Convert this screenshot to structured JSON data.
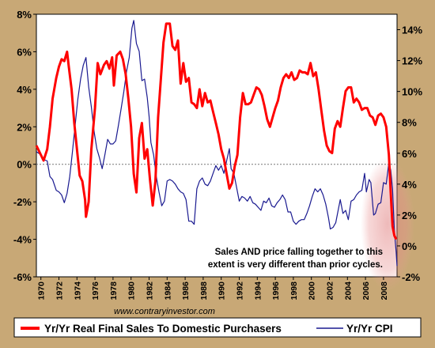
{
  "chart_data": {
    "type": "line",
    "title": "",
    "annotation": {
      "line1": "Sales AND price falling together to this",
      "line2": "extent is very different than prior cycles."
    },
    "source": "www.contraryinvestor.com",
    "x_ticks": [
      "1970",
      "1972",
      "1974",
      "1976",
      "1978",
      "1980",
      "1982",
      "1984",
      "1986",
      "1988",
      "1990",
      "1992",
      "1994",
      "1996",
      "1998",
      "2000",
      "2002",
      "2004",
      "2006",
      "2008"
    ],
    "xlim": [
      1969.5,
      2009.5
    ],
    "left_axis": {
      "ylim": [
        -6,
        8
      ],
      "ticks": [
        "-6%",
        "-4%",
        "-2%",
        "0%",
        "2%",
        "4%",
        "6%",
        "8%"
      ],
      "tick_values": [
        -6,
        -4,
        -2,
        0,
        2,
        4,
        6,
        8
      ]
    },
    "right_axis": {
      "ylim": [
        -2,
        15
      ],
      "ticks": [
        "-2%",
        "0%",
        "2%",
        "4%",
        "6%",
        "8%",
        "10%",
        "12%",
        "14%"
      ],
      "tick_values": [
        -2,
        0,
        2,
        4,
        6,
        8,
        10,
        12,
        14
      ]
    },
    "series": [
      {
        "name": "Yr/Yr Real Final Sales To Domestic Purchasers",
        "axis": "left",
        "color": "#ff0000",
        "points": [
          [
            1969.5,
            1.0
          ],
          [
            1970.0,
            0.5
          ],
          [
            1970.3,
            0.2
          ],
          [
            1970.7,
            0.8
          ],
          [
            1971.0,
            2.0
          ],
          [
            1971.3,
            3.5
          ],
          [
            1971.7,
            4.6
          ],
          [
            1972.0,
            5.2
          ],
          [
            1972.3,
            5.6
          ],
          [
            1972.6,
            5.5
          ],
          [
            1972.9,
            6.0
          ],
          [
            1973.1,
            5.2
          ],
          [
            1973.4,
            4.0
          ],
          [
            1973.7,
            2.2
          ],
          [
            1974.0,
            0.8
          ],
          [
            1974.3,
            -0.6
          ],
          [
            1974.6,
            -0.9
          ],
          [
            1974.9,
            -1.9
          ],
          [
            1975.0,
            -2.8
          ],
          [
            1975.3,
            -2.0
          ],
          [
            1975.6,
            0.8
          ],
          [
            1976.0,
            3.0
          ],
          [
            1976.3,
            5.4
          ],
          [
            1976.6,
            4.8
          ],
          [
            1977.0,
            5.3
          ],
          [
            1977.3,
            5.5
          ],
          [
            1977.6,
            5.1
          ],
          [
            1977.9,
            5.7
          ],
          [
            1978.1,
            4.2
          ],
          [
            1978.4,
            5.8
          ],
          [
            1978.8,
            6.0
          ],
          [
            1979.1,
            5.6
          ],
          [
            1979.4,
            4.8
          ],
          [
            1979.7,
            3.5
          ],
          [
            1980.0,
            2.0
          ],
          [
            1980.3,
            -0.5
          ],
          [
            1980.6,
            -1.5
          ],
          [
            1980.9,
            1.4
          ],
          [
            1981.2,
            2.2
          ],
          [
            1981.5,
            0.3
          ],
          [
            1981.8,
            0.8
          ],
          [
            1982.1,
            -0.8
          ],
          [
            1982.4,
            -2.2
          ],
          [
            1982.7,
            -0.9
          ],
          [
            1983.0,
            2.5
          ],
          [
            1983.3,
            4.5
          ],
          [
            1983.6,
            6.5
          ],
          [
            1983.9,
            7.5
          ],
          [
            1984.3,
            7.5
          ],
          [
            1984.6,
            6.3
          ],
          [
            1984.9,
            6.1
          ],
          [
            1985.2,
            6.6
          ],
          [
            1985.5,
            4.3
          ],
          [
            1985.8,
            5.4
          ],
          [
            1986.1,
            4.4
          ],
          [
            1986.4,
            4.6
          ],
          [
            1986.7,
            3.3
          ],
          [
            1987.0,
            3.2
          ],
          [
            1987.3,
            3.0
          ],
          [
            1987.6,
            4.0
          ],
          [
            1987.9,
            3.1
          ],
          [
            1988.2,
            3.8
          ],
          [
            1988.5,
            3.3
          ],
          [
            1988.8,
            3.4
          ],
          [
            1989.1,
            2.8
          ],
          [
            1989.4,
            2.2
          ],
          [
            1989.7,
            1.6
          ],
          [
            1990.0,
            0.8
          ],
          [
            1990.3,
            0.3
          ],
          [
            1990.6,
            -0.5
          ],
          [
            1990.9,
            -1.3
          ],
          [
            1991.2,
            -1.0
          ],
          [
            1991.5,
            -0.1
          ],
          [
            1991.8,
            0.5
          ],
          [
            1992.1,
            2.5
          ],
          [
            1992.4,
            3.8
          ],
          [
            1992.7,
            3.2
          ],
          [
            1993.0,
            3.2
          ],
          [
            1993.3,
            3.3
          ],
          [
            1993.6,
            3.7
          ],
          [
            1993.9,
            4.1
          ],
          [
            1994.2,
            4.0
          ],
          [
            1994.5,
            3.7
          ],
          [
            1994.8,
            3.1
          ],
          [
            1995.1,
            2.4
          ],
          [
            1995.4,
            2.0
          ],
          [
            1995.7,
            2.5
          ],
          [
            1996.0,
            3.0
          ],
          [
            1996.3,
            3.4
          ],
          [
            1996.6,
            4.1
          ],
          [
            1996.9,
            4.6
          ],
          [
            1997.2,
            4.8
          ],
          [
            1997.5,
            4.6
          ],
          [
            1997.8,
            4.9
          ],
          [
            1998.1,
            4.5
          ],
          [
            1998.4,
            4.6
          ],
          [
            1998.7,
            5.0
          ],
          [
            1999.0,
            4.9
          ],
          [
            1999.3,
            4.9
          ],
          [
            1999.6,
            4.8
          ],
          [
            1999.9,
            5.4
          ],
          [
            2000.2,
            4.7
          ],
          [
            2000.5,
            4.9
          ],
          [
            2000.8,
            4.0
          ],
          [
            2001.1,
            2.9
          ],
          [
            2001.4,
            1.8
          ],
          [
            2001.7,
            1.0
          ],
          [
            2002.0,
            0.7
          ],
          [
            2002.3,
            0.6
          ],
          [
            2002.6,
            1.9
          ],
          [
            2002.9,
            2.3
          ],
          [
            2003.2,
            2.0
          ],
          [
            2003.5,
            3.0
          ],
          [
            2003.8,
            3.9
          ],
          [
            2004.1,
            4.1
          ],
          [
            2004.4,
            4.1
          ],
          [
            2004.7,
            3.3
          ],
          [
            2005.0,
            3.5
          ],
          [
            2005.3,
            3.3
          ],
          [
            2005.6,
            2.9
          ],
          [
            2005.9,
            3.0
          ],
          [
            2006.2,
            3.0
          ],
          [
            2006.5,
            2.6
          ],
          [
            2006.8,
            2.5
          ],
          [
            2007.1,
            2.1
          ],
          [
            2007.4,
            2.6
          ],
          [
            2007.7,
            2.7
          ],
          [
            2008.0,
            2.5
          ],
          [
            2008.3,
            2.0
          ],
          [
            2008.6,
            0.5
          ],
          [
            2008.8,
            -1.5
          ],
          [
            2009.0,
            -3.3
          ],
          [
            2009.2,
            -3.8
          ],
          [
            2009.4,
            -4.0
          ]
        ]
      },
      {
        "name": "Yr/Yr CPI",
        "axis": "right",
        "color": "#1a1a90",
        "points": [
          [
            1969.5,
            6.1
          ],
          [
            1970.0,
            5.9
          ],
          [
            1970.3,
            5.6
          ],
          [
            1970.7,
            5.5
          ],
          [
            1971.0,
            4.5
          ],
          [
            1971.3,
            4.3
          ],
          [
            1971.7,
            3.6
          ],
          [
            1972.0,
            3.5
          ],
          [
            1972.3,
            3.3
          ],
          [
            1972.6,
            2.8
          ],
          [
            1972.9,
            3.4
          ],
          [
            1973.2,
            4.5
          ],
          [
            1973.5,
            6.1
          ],
          [
            1973.8,
            7.8
          ],
          [
            1974.1,
            9.5
          ],
          [
            1974.4,
            10.8
          ],
          [
            1974.7,
            11.7
          ],
          [
            1975.0,
            12.2
          ],
          [
            1975.3,
            10.3
          ],
          [
            1975.6,
            9.0
          ],
          [
            1975.9,
            7.4
          ],
          [
            1976.2,
            6.3
          ],
          [
            1976.5,
            5.7
          ],
          [
            1976.8,
            5.0
          ],
          [
            1977.1,
            5.9
          ],
          [
            1977.4,
            6.9
          ],
          [
            1977.7,
            6.6
          ],
          [
            1978.0,
            6.6
          ],
          [
            1978.3,
            6.8
          ],
          [
            1978.6,
            7.8
          ],
          [
            1978.9,
            8.9
          ],
          [
            1979.2,
            10.0
          ],
          [
            1979.5,
            11.3
          ],
          [
            1979.8,
            12.2
          ],
          [
            1980.1,
            14.1
          ],
          [
            1980.3,
            14.6
          ],
          [
            1980.6,
            13.1
          ],
          [
            1980.9,
            12.6
          ],
          [
            1981.2,
            10.7
          ],
          [
            1981.5,
            10.8
          ],
          [
            1981.8,
            9.6
          ],
          [
            1982.0,
            8.4
          ],
          [
            1982.2,
            6.7
          ],
          [
            1982.5,
            5.9
          ],
          [
            1982.8,
            4.5
          ],
          [
            1983.1,
            3.5
          ],
          [
            1983.4,
            2.6
          ],
          [
            1983.7,
            2.9
          ],
          [
            1984.0,
            4.2
          ],
          [
            1984.3,
            4.3
          ],
          [
            1984.6,
            4.2
          ],
          [
            1984.9,
            4.0
          ],
          [
            1985.2,
            3.7
          ],
          [
            1985.5,
            3.5
          ],
          [
            1985.8,
            3.4
          ],
          [
            1986.1,
            3.0
          ],
          [
            1986.4,
            1.6
          ],
          [
            1986.7,
            1.6
          ],
          [
            1987.0,
            1.4
          ],
          [
            1987.3,
            3.7
          ],
          [
            1987.6,
            4.2
          ],
          [
            1987.9,
            4.4
          ],
          [
            1988.2,
            4.0
          ],
          [
            1988.5,
            3.9
          ],
          [
            1988.8,
            4.2
          ],
          [
            1989.1,
            4.7
          ],
          [
            1989.4,
            5.2
          ],
          [
            1989.7,
            4.9
          ],
          [
            1990.0,
            5.2
          ],
          [
            1990.3,
            4.7
          ],
          [
            1990.6,
            5.5
          ],
          [
            1990.9,
            6.3
          ],
          [
            1991.1,
            5.0
          ],
          [
            1991.4,
            4.7
          ],
          [
            1991.7,
            3.8
          ],
          [
            1992.0,
            2.9
          ],
          [
            1992.3,
            3.2
          ],
          [
            1992.6,
            3.1
          ],
          [
            1992.9,
            2.9
          ],
          [
            1993.2,
            3.2
          ],
          [
            1993.5,
            2.8
          ],
          [
            1993.8,
            2.7
          ],
          [
            1994.1,
            2.5
          ],
          [
            1994.4,
            2.3
          ],
          [
            1994.7,
            2.9
          ],
          [
            1995.0,
            2.8
          ],
          [
            1995.3,
            3.1
          ],
          [
            1995.6,
            2.6
          ],
          [
            1995.9,
            2.5
          ],
          [
            1996.2,
            2.8
          ],
          [
            1996.5,
            3.0
          ],
          [
            1996.8,
            3.3
          ],
          [
            1997.1,
            3.0
          ],
          [
            1997.4,
            2.2
          ],
          [
            1997.7,
            2.2
          ],
          [
            1998.0,
            1.6
          ],
          [
            1998.3,
            1.4
          ],
          [
            1998.6,
            1.6
          ],
          [
            1998.9,
            1.7
          ],
          [
            1999.2,
            1.7
          ],
          [
            1999.5,
            2.1
          ],
          [
            1999.8,
            2.6
          ],
          [
            2000.1,
            3.2
          ],
          [
            2000.4,
            3.7
          ],
          [
            2000.7,
            3.5
          ],
          [
            2001.0,
            3.7
          ],
          [
            2001.3,
            3.3
          ],
          [
            2001.6,
            2.7
          ],
          [
            2001.9,
            1.8
          ],
          [
            2002.1,
            1.1
          ],
          [
            2002.4,
            1.2
          ],
          [
            2002.7,
            1.5
          ],
          [
            2003.0,
            2.4
          ],
          [
            2003.2,
            3.0
          ],
          [
            2003.5,
            2.1
          ],
          [
            2003.8,
            2.3
          ],
          [
            2004.1,
            1.7
          ],
          [
            2004.4,
            2.9
          ],
          [
            2004.7,
            3.0
          ],
          [
            2005.0,
            3.3
          ],
          [
            2005.3,
            3.5
          ],
          [
            2005.6,
            3.6
          ],
          [
            2005.9,
            4.7
          ],
          [
            2006.1,
            3.5
          ],
          [
            2006.4,
            4.3
          ],
          [
            2006.6,
            4.1
          ],
          [
            2006.9,
            2.0
          ],
          [
            2007.1,
            2.1
          ],
          [
            2007.4,
            2.7
          ],
          [
            2007.7,
            2.8
          ],
          [
            2008.0,
            4.1
          ],
          [
            2008.3,
            4.0
          ],
          [
            2008.6,
            5.4
          ],
          [
            2008.8,
            4.9
          ],
          [
            2009.0,
            3.7
          ],
          [
            2009.2,
            1.0
          ],
          [
            2009.4,
            -0.4
          ],
          [
            2009.5,
            -1.3
          ]
        ]
      }
    ],
    "legend_placement": "bottom",
    "grid": false
  }
}
